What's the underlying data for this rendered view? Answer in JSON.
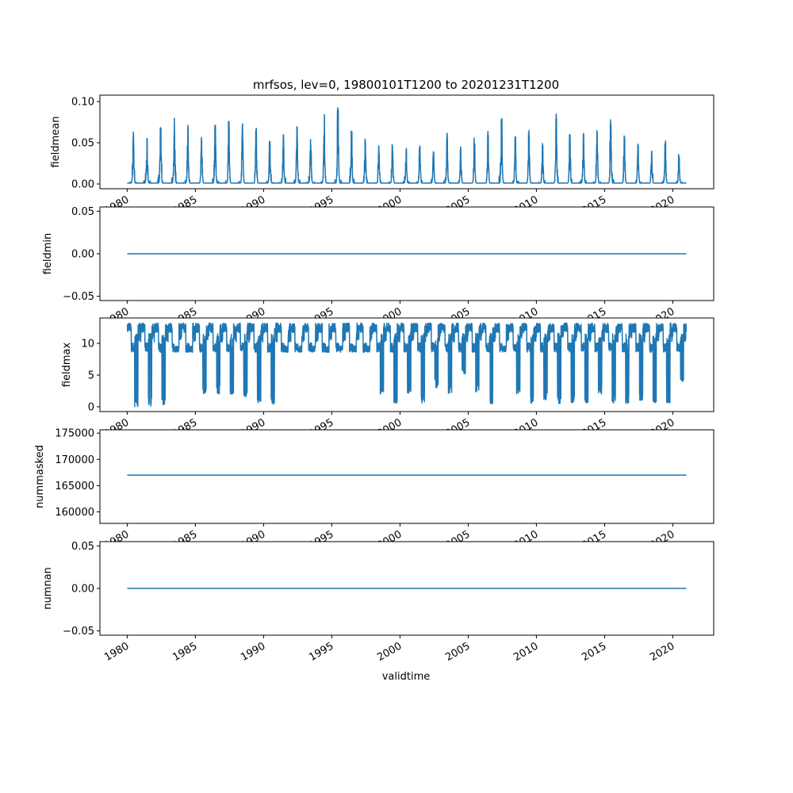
{
  "chart_data": {
    "type": "line",
    "title": "mrfsos, lev=0, 19800101T1200 to 20201231T1200",
    "xlabel": "validtime",
    "xlim": [
      1978.0,
      2023.0
    ],
    "x_ticks": [
      "1980",
      "1985",
      "1990",
      "1995",
      "2000",
      "2005",
      "2010",
      "2015",
      "2020"
    ],
    "line_color": "#1f77b4",
    "x_range": [
      1980.0,
      2021.0
    ],
    "panels": [
      {
        "ylabel": "fieldmean",
        "ylim": [
          -0.0058,
          0.1077
        ],
        "y_ticks": [
          "0.00",
          "0.05",
          "0.10"
        ],
        "y_tick_values": [
          0,
          0.05,
          0.1
        ],
        "kind": "seasonal_peaks",
        "baseline": 0.001,
        "yearly_peak": [
          0.063,
          0.058,
          0.069,
          0.068,
          0.072,
          0.058,
          0.073,
          0.076,
          0.077,
          0.067,
          0.052,
          0.06,
          0.07,
          0.055,
          0.085,
          0.103,
          0.064,
          0.055,
          0.05,
          0.05,
          0.043,
          0.05,
          0.04,
          0.064,
          0.045,
          0.057,
          0.063,
          0.08,
          0.06,
          0.065,
          0.05,
          0.085,
          0.06,
          0.067,
          0.063,
          0.084,
          0.06,
          0.05,
          0.042,
          0.055,
          0.035
        ]
      },
      {
        "ylabel": "fieldmin",
        "ylim": [
          -0.055,
          0.055
        ],
        "y_ticks": [
          "−0.05",
          "0.00",
          "0.05"
        ],
        "y_tick_values": [
          -0.05,
          0,
          0.05
        ],
        "kind": "constant",
        "value": 0
      },
      {
        "ylabel": "fieldmax",
        "ylim": [
          -0.75,
          14.0
        ],
        "y_ticks": [
          "0",
          "5",
          "10"
        ],
        "y_tick_values": [
          0,
          5,
          10
        ],
        "kind": "plateau_drops",
        "plateau_high": 13.2,
        "plateau_mid": 8.6,
        "yearly_min": [
          0,
          0,
          0.3,
          8.5,
          8.5,
          2,
          2,
          2,
          1.5,
          0.4,
          0.4,
          8,
          8,
          8,
          8.2,
          8,
          8,
          8,
          2,
          0.5,
          2,
          0.5,
          3,
          2,
          5,
          2,
          0.5,
          8,
          2,
          0.5,
          1,
          0.5,
          0.5,
          0.5,
          2,
          0.5,
          0.5,
          1,
          0.5,
          0.5,
          4
        ]
      },
      {
        "ylabel": "nummasked",
        "ylim": [
          157812,
          175625
        ],
        "y_ticks": [
          "160000",
          "165000",
          "170000",
          "175000"
        ],
        "y_tick_values": [
          160000,
          165000,
          170000,
          175000
        ],
        "kind": "constant",
        "value": 167000
      },
      {
        "ylabel": "numnan",
        "ylim": [
          -0.055,
          0.055
        ],
        "y_ticks": [
          "−0.05",
          "0.00",
          "0.05"
        ],
        "y_tick_values": [
          -0.05,
          0,
          0.05
        ],
        "kind": "constant",
        "value": 0
      }
    ]
  }
}
